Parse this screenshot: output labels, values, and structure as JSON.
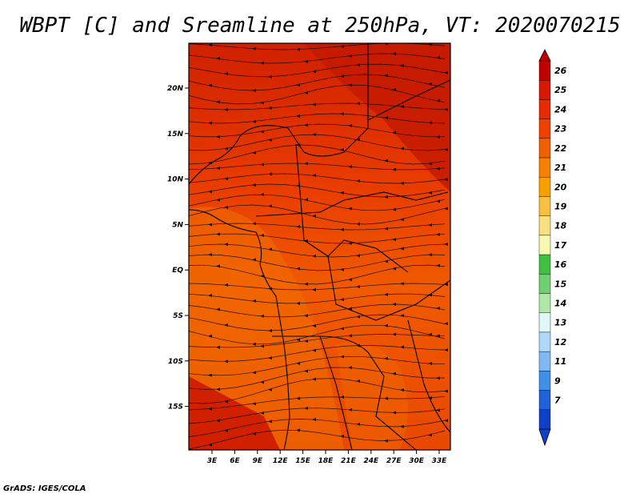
{
  "title": "WBPT [C] and Sreamline at 250hPa, VT: 2020070215",
  "credit": "GrADS: IGES/COLA",
  "map": {
    "x_ticks": [
      "3E",
      "6E",
      "9E",
      "12E",
      "15E",
      "18E",
      "21E",
      "24E",
      "27E",
      "30E",
      "33E"
    ],
    "y_ticks": [
      "20N",
      "15N",
      "10N",
      "5N",
      "EQ",
      "5S",
      "10S",
      "15S"
    ]
  },
  "colorbar": {
    "labels": [
      "26",
      "25",
      "24",
      "23",
      "22",
      "21",
      "20",
      "19",
      "18",
      "17",
      "16",
      "15",
      "14",
      "13",
      "12",
      "11",
      "9",
      "7"
    ],
    "colors": [
      "#c00000",
      "#d81800",
      "#e82a00",
      "#f04000",
      "#f06000",
      "#f88000",
      "#f8a000",
      "#f8c040",
      "#f8e080",
      "#f8f8b0",
      "#40c040",
      "#70d070",
      "#b0e8a8",
      "#e0f8f8",
      "#b0d8f8",
      "#80b8f0",
      "#4090e8",
      "#2060d8",
      "#1040c8"
    ]
  }
}
